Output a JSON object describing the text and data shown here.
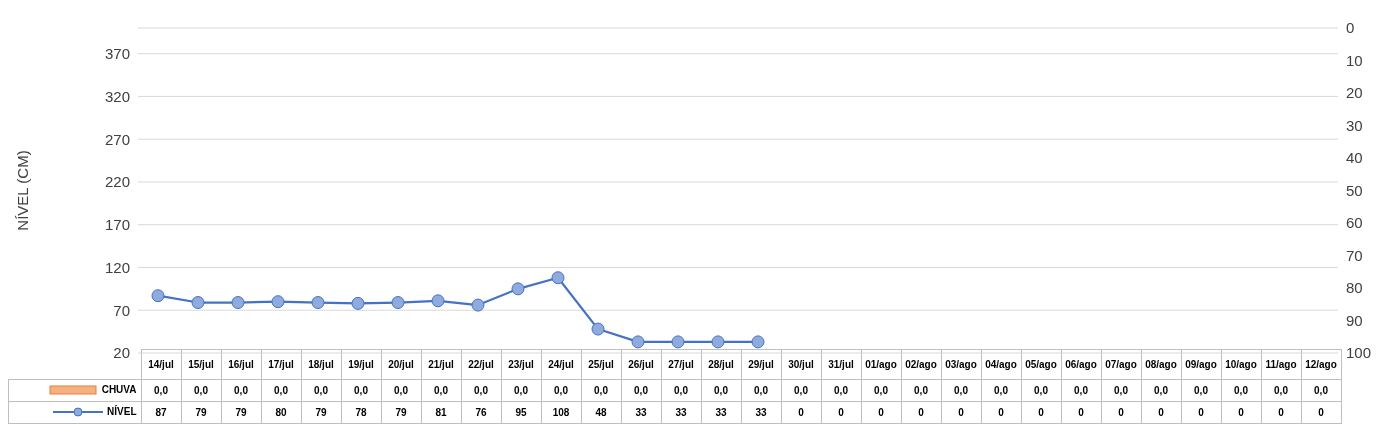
{
  "chart_data": {
    "type": "line",
    "ylabel": "NÍVEL (CM)",
    "categories": [
      "14/jul",
      "15/jul",
      "16/jul",
      "17/jul",
      "18/jul",
      "19/jul",
      "20/jul",
      "21/jul",
      "22/jul",
      "23/jul",
      "24/jul",
      "25/jul",
      "26/jul",
      "27/jul",
      "28/jul",
      "29/jul",
      "30/jul",
      "31/jul",
      "01/ago",
      "02/ago",
      "03/ago",
      "04/ago",
      "05/ago",
      "06/ago",
      "07/ago",
      "08/ago",
      "09/ago",
      "10/ago",
      "11/ago",
      "12/ago"
    ],
    "series": [
      {
        "name": "CHUVA",
        "type": "bar",
        "axis": "y2",
        "color": "#f4b183",
        "values": [
          0,
          0,
          0,
          0,
          0,
          0,
          0,
          0,
          0,
          0,
          0,
          0,
          0,
          0,
          0,
          0,
          0,
          0,
          0,
          0,
          0,
          0,
          0,
          0,
          0,
          0,
          0,
          0,
          0,
          0
        ],
        "value_labels": [
          "0,0",
          "0,0",
          "0,0",
          "0,0",
          "0,0",
          "0,0",
          "0,0",
          "0,0",
          "0,0",
          "0,0",
          "0,0",
          "0,0",
          "0,0",
          "0,0",
          "0,0",
          "0,0",
          "0,0",
          "0,0",
          "0,0",
          "0,0",
          "0,0",
          "0,0",
          "0,0",
          "0,0",
          "0,0",
          "0,0",
          "0,0",
          "0,0",
          "0,0",
          "0,0"
        ]
      },
      {
        "name": "NÍVEL",
        "color": "#4472c4",
        "values": [
          87,
          79,
          79,
          80,
          79,
          78,
          79,
          81,
          76,
          95,
          108,
          48,
          33,
          33,
          33,
          33,
          null,
          null,
          null,
          null,
          null,
          null,
          null,
          null,
          null,
          null,
          null,
          null,
          null,
          null
        ],
        "value_labels": [
          "87",
          "79",
          "79",
          "80",
          "79",
          "78",
          "79",
          "81",
          "76",
          "95",
          "108",
          "48",
          "33",
          "33",
          "33",
          "33",
          "0",
          "0",
          "0",
          "0",
          "0",
          "0",
          "0",
          "0",
          "0",
          "0",
          "0",
          "0",
          "0",
          "0"
        ]
      }
    ],
    "marker": "circle",
    "line_style": "solid",
    "ylim": [
      20,
      400
    ],
    "yticks": [
      20,
      70,
      120,
      170,
      220,
      270,
      320,
      370
    ],
    "y2lim": [
      100,
      0
    ],
    "y2ticks": [
      0,
      10,
      20,
      30,
      40,
      50,
      60,
      70,
      80,
      90,
      100
    ],
    "grid": "y",
    "legend": "bottom"
  }
}
